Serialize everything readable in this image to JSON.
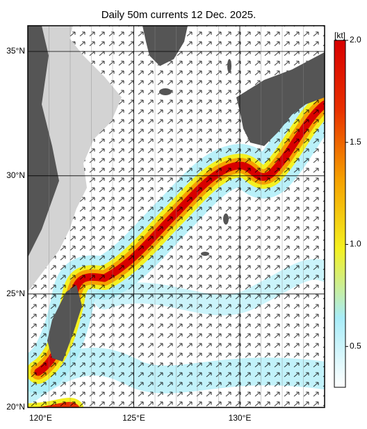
{
  "chart_data": {
    "type": "map",
    "title": "Daily 50m currents 12 Dec. 2025.",
    "xlim": [
      120,
      134
    ],
    "ylim": [
      20,
      36
    ],
    "xticks": [
      {
        "value": 120,
        "label": "120°E"
      },
      {
        "value": 125,
        "label": "125°E"
      },
      {
        "value": 130,
        "label": "130°E"
      }
    ],
    "yticks": [
      {
        "value": 20,
        "label": "20°N"
      },
      {
        "value": 25,
        "label": "25°N"
      },
      {
        "value": 30,
        "label": "30°N"
      },
      {
        "value": 35,
        "label": "35°N"
      }
    ],
    "grid": true,
    "colorbar": {
      "label": "[kt]",
      "clim": [
        0.3,
        2.0
      ],
      "ticks": [
        {
          "value": 0.5,
          "label": "0.5"
        },
        {
          "value": 1.0,
          "label": "1.0"
        },
        {
          "value": 1.5,
          "label": "1.5"
        },
        {
          "value": 2.0,
          "label": "2.0"
        }
      ],
      "colormap": [
        "#ffffff",
        "#a8ecf8",
        "#f4f020",
        "#f5a000",
        "#e83000",
        "#d80000"
      ]
    }
  }
}
